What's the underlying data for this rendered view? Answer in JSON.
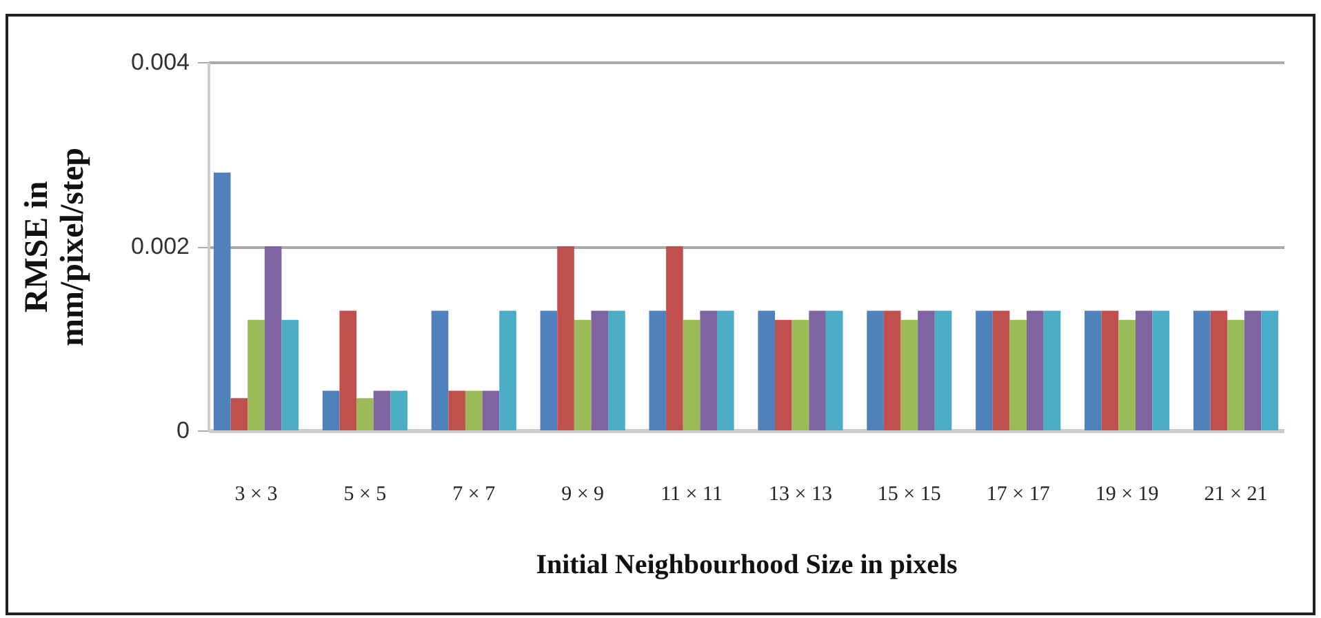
{
  "chart_data": {
    "type": "bar",
    "xlabel": "Initial  Neighbourhood  Size in pixels",
    "ylabel": "RMSE  in\nmm/pixel/step",
    "categories": [
      "3 × 3",
      "5 × 5",
      "7 × 7",
      "9 × 9",
      "11 × 11",
      "13 × 13",
      "15 × 15",
      "17 × 17",
      "19 × 19",
      "21 × 21"
    ],
    "series": [
      {
        "color": "#4f81bd",
        "values": [
          0.0028,
          0.00043,
          0.0013,
          0.0013,
          0.0013,
          0.0013,
          0.0013,
          0.0013,
          0.0013,
          0.0013
        ]
      },
      {
        "color": "#c0504d",
        "values": [
          0.00035,
          0.0013,
          0.00043,
          0.002,
          0.002,
          0.0012,
          0.0013,
          0.0013,
          0.0013,
          0.0013
        ]
      },
      {
        "color": "#9bbb59",
        "values": [
          0.0012,
          0.00035,
          0.00043,
          0.0012,
          0.0012,
          0.0012,
          0.0012,
          0.0012,
          0.0012,
          0.0012
        ]
      },
      {
        "color": "#8064a2",
        "values": [
          0.002,
          0.00043,
          0.00043,
          0.0013,
          0.0013,
          0.0013,
          0.0013,
          0.0013,
          0.0013,
          0.0013
        ]
      },
      {
        "color": "#4bacc6",
        "values": [
          0.0012,
          0.00043,
          0.0013,
          0.0013,
          0.0013,
          0.0013,
          0.0013,
          0.0013,
          0.0013,
          0.0013
        ]
      }
    ],
    "ylim": [
      0,
      0.004
    ],
    "yticks": [
      0,
      0.002,
      0.004
    ],
    "grid": "y"
  }
}
